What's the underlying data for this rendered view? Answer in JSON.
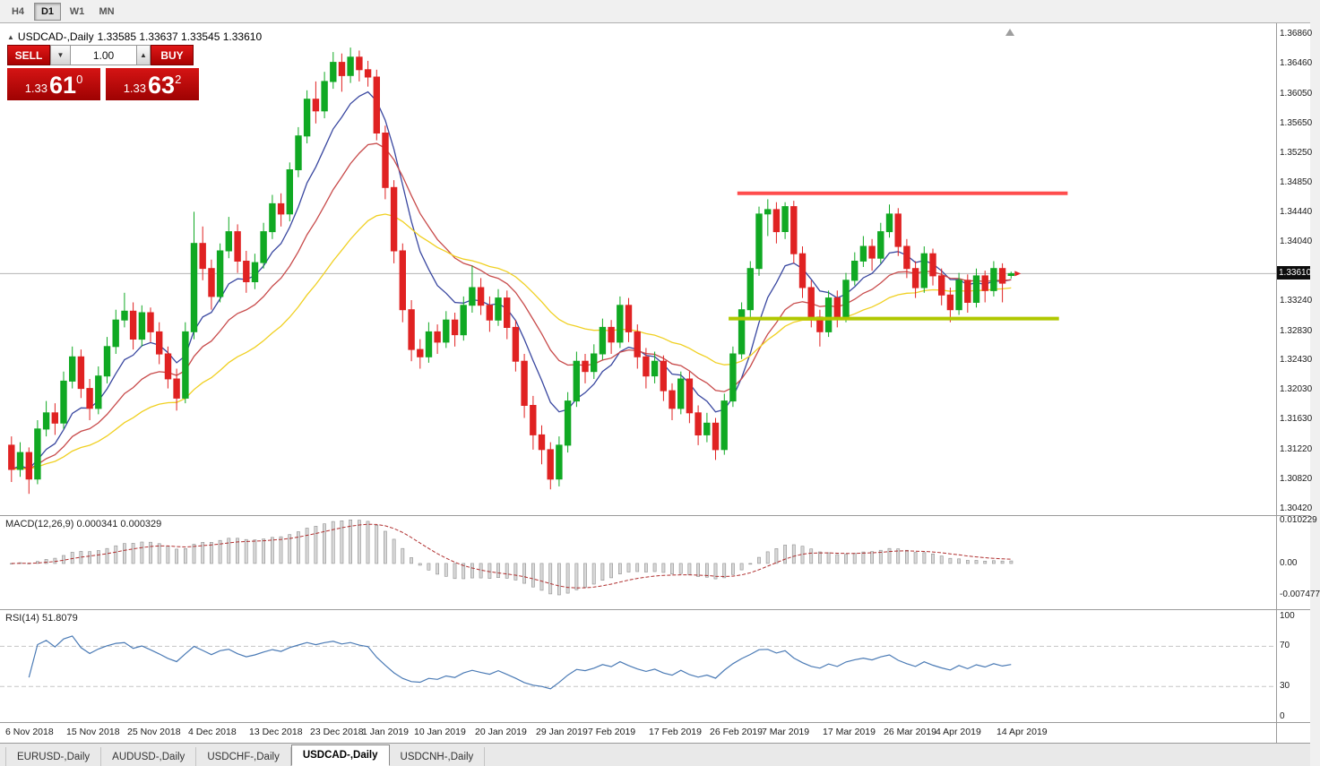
{
  "toolbar": {
    "timeframes": [
      {
        "label": "H4",
        "active": false
      },
      {
        "label": "D1",
        "active": true
      },
      {
        "label": "W1",
        "active": false
      },
      {
        "label": "MN",
        "active": false
      }
    ]
  },
  "chart_header": {
    "symbol_icon": "▲",
    "symbol": "USDCAD-,Daily",
    "ohlc_text": "1.33585 1.33637 1.33545 1.33610"
  },
  "trade_panel": {
    "sell_label": "SELL",
    "buy_label": "BUY",
    "volume": "1.00",
    "volume_down_icon": "▼",
    "volume_up_icon": "▲",
    "sell_price": {
      "prefix": "1.33",
      "main": "61",
      "sup": "0"
    },
    "buy_price": {
      "prefix": "1.33",
      "main": "63",
      "sup": "2"
    }
  },
  "indicators": {
    "macd_header": "MACD(12,26,9) 0.000341 0.000329",
    "rsi_header": "RSI(14) 51.8079"
  },
  "tabs": [
    {
      "label": "EURUSD-,Daily",
      "active": false
    },
    {
      "label": "AUDUSD-,Daily",
      "active": false
    },
    {
      "label": "USDCHF-,Daily",
      "active": false
    },
    {
      "label": "USDCAD-,Daily",
      "active": true
    },
    {
      "label": "USDCNH-,Daily",
      "active": false
    }
  ],
  "colors": {
    "up": "#10a923",
    "down": "#e02222",
    "ma_fast": "#3947a0",
    "ma_mid": "#c84b4b",
    "ma_slow": "#f0d022",
    "resistance": "#ff4d4d",
    "support": "#b0c800",
    "macd_hist": "#d8d8d8",
    "macd_hist_border": "#8f8f8f",
    "macd_signal": "#b03030",
    "rsi": "#4a7ab5",
    "price_line": "#b5b5b5",
    "tag_bg": "#0d0d0d"
  },
  "chart_data": {
    "type": "candlestick",
    "symbol": "USDCAD",
    "timeframe": "Daily",
    "last_ohlc": [
      1.33585,
      1.33637,
      1.33545,
      1.3361
    ],
    "y_axis": {
      "range": [
        1.3033,
        1.3701
      ],
      "ticks": [
        "1.36860",
        "1.36460",
        "1.36050",
        "1.35650",
        "1.35250",
        "1.34850",
        "1.34440",
        "1.34040",
        "1.33240",
        "1.32830",
        "1.32430",
        "1.32030",
        "1.31630",
        "1.31220",
        "1.30820",
        "1.30420"
      ],
      "current": 1.3361,
      "current_label": "1.33610"
    },
    "x_axis": {
      "labels": [
        {
          "i": 0,
          "t": "6 Nov 2018"
        },
        {
          "i": 7,
          "t": "15 Nov 2018"
        },
        {
          "i": 14,
          "t": "25 Nov 2018"
        },
        {
          "i": 21,
          "t": "4 Dec 2018"
        },
        {
          "i": 28,
          "t": "13 Dec 2018"
        },
        {
          "i": 35,
          "t": "23 Dec 2018"
        },
        {
          "i": 41,
          "t": "1 Jan 2019"
        },
        {
          "i": 47,
          "t": "10 Jan 2019"
        },
        {
          "i": 54,
          "t": "20 Jan 2019"
        },
        {
          "i": 61,
          "t": "29 Jan 2019"
        },
        {
          "i": 67,
          "t": "7 Feb 2019"
        },
        {
          "i": 74,
          "t": "17 Feb 2019"
        },
        {
          "i": 81,
          "t": "26 Feb 2019"
        },
        {
          "i": 87,
          "t": "7 Mar 2019"
        },
        {
          "i": 94,
          "t": "17 Mar 2019"
        },
        {
          "i": 101,
          "t": "26 Mar 2019"
        },
        {
          "i": 107,
          "t": "4 Apr 2019"
        },
        {
          "i": 114,
          "t": "14 Apr 2019"
        }
      ]
    },
    "candles": [
      [
        1.3128,
        1.314,
        1.3078,
        1.3095
      ],
      [
        1.3095,
        1.3132,
        1.3085,
        1.3118
      ],
      [
        1.3118,
        1.3125,
        1.3062,
        1.3082
      ],
      [
        1.3082,
        1.3162,
        1.3075,
        1.315
      ],
      [
        1.315,
        1.3188,
        1.314,
        1.3172
      ],
      [
        1.3172,
        1.3185,
        1.3142,
        1.3158
      ],
      [
        1.3158,
        1.3228,
        1.315,
        1.3215
      ],
      [
        1.3215,
        1.3262,
        1.3205,
        1.3248
      ],
      [
        1.3248,
        1.3258,
        1.3192,
        1.3205
      ],
      [
        1.3205,
        1.3218,
        1.3162,
        1.3178
      ],
      [
        1.3178,
        1.3235,
        1.317,
        1.3222
      ],
      [
        1.3222,
        1.3275,
        1.3212,
        1.3262
      ],
      [
        1.3262,
        1.3312,
        1.3252,
        1.3298
      ],
      [
        1.3298,
        1.3335,
        1.3288,
        1.331
      ],
      [
        1.331,
        1.3322,
        1.3258,
        1.3272
      ],
      [
        1.3272,
        1.3318,
        1.3262,
        1.3308
      ],
      [
        1.3308,
        1.3315,
        1.3268,
        1.3282
      ],
      [
        1.3282,
        1.3295,
        1.3238,
        1.3252
      ],
      [
        1.3252,
        1.3262,
        1.3205,
        1.3218
      ],
      [
        1.3218,
        1.3232,
        1.3175,
        1.3192
      ],
      [
        1.3192,
        1.3295,
        1.3185,
        1.3282
      ],
      [
        1.3282,
        1.3445,
        1.3272,
        1.3402
      ],
      [
        1.3402,
        1.3425,
        1.3352,
        1.3368
      ],
      [
        1.3368,
        1.338,
        1.3312,
        1.333
      ],
      [
        1.333,
        1.3402,
        1.3322,
        1.3392
      ],
      [
        1.3392,
        1.3438,
        1.3382,
        1.3418
      ],
      [
        1.3418,
        1.3428,
        1.3362,
        1.3378
      ],
      [
        1.3378,
        1.3392,
        1.3335,
        1.335
      ],
      [
        1.335,
        1.3388,
        1.334,
        1.3376
      ],
      [
        1.3376,
        1.343,
        1.3368,
        1.3418
      ],
      [
        1.3418,
        1.3468,
        1.3408,
        1.3456
      ],
      [
        1.3456,
        1.347,
        1.3425,
        1.3442
      ],
      [
        1.3442,
        1.3512,
        1.3432,
        1.3502
      ],
      [
        1.3502,
        1.356,
        1.3492,
        1.3548
      ],
      [
        1.3548,
        1.361,
        1.3538,
        1.3598
      ],
      [
        1.3598,
        1.3622,
        1.3565,
        1.3582
      ],
      [
        1.3582,
        1.3635,
        1.3572,
        1.3622
      ],
      [
        1.3622,
        1.3662,
        1.3612,
        1.3648
      ],
      [
        1.3648,
        1.366,
        1.3608,
        1.363
      ],
      [
        1.363,
        1.3668,
        1.362,
        1.3655
      ],
      [
        1.3655,
        1.3664,
        1.3622,
        1.3638
      ],
      [
        1.3638,
        1.365,
        1.3615,
        1.3628
      ],
      [
        1.3628,
        1.3638,
        1.3542,
        1.3552
      ],
      [
        1.3552,
        1.3562,
        1.3462,
        1.3478
      ],
      [
        1.3478,
        1.3488,
        1.3375,
        1.3392
      ],
      [
        1.3392,
        1.3402,
        1.3295,
        1.3312
      ],
      [
        1.3312,
        1.3325,
        1.3242,
        1.3258
      ],
      [
        1.3258,
        1.3272,
        1.3232,
        1.3248
      ],
      [
        1.3248,
        1.3295,
        1.324,
        1.3282
      ],
      [
        1.3282,
        1.3292,
        1.3252,
        1.3268
      ],
      [
        1.3268,
        1.331,
        1.326,
        1.3298
      ],
      [
        1.3298,
        1.3308,
        1.3262,
        1.3278
      ],
      [
        1.3278,
        1.333,
        1.327,
        1.3318
      ],
      [
        1.3318,
        1.3372,
        1.3308,
        1.3342
      ],
      [
        1.3342,
        1.3355,
        1.3305,
        1.3318
      ],
      [
        1.3318,
        1.333,
        1.3282,
        1.3298
      ],
      [
        1.3298,
        1.334,
        1.329,
        1.3328
      ],
      [
        1.3328,
        1.3338,
        1.3272,
        1.3288
      ],
      [
        1.3288,
        1.3298,
        1.3228,
        1.3242
      ],
      [
        1.3242,
        1.3252,
        1.3165,
        1.3182
      ],
      [
        1.3182,
        1.3195,
        1.3122,
        1.3142
      ],
      [
        1.3142,
        1.3155,
        1.3102,
        1.3122
      ],
      [
        1.3122,
        1.3132,
        1.3068,
        1.3082
      ],
      [
        1.3082,
        1.314,
        1.3072,
        1.3128
      ],
      [
        1.3128,
        1.32,
        1.3118,
        1.3188
      ],
      [
        1.3188,
        1.3255,
        1.318,
        1.3242
      ],
      [
        1.3242,
        1.3252,
        1.3212,
        1.3228
      ],
      [
        1.3228,
        1.3265,
        1.3218,
        1.3252
      ],
      [
        1.3252,
        1.33,
        1.3244,
        1.3288
      ],
      [
        1.3288,
        1.3298,
        1.3252,
        1.3268
      ],
      [
        1.3268,
        1.333,
        1.326,
        1.3318
      ],
      [
        1.3318,
        1.3328,
        1.3268,
        1.3282
      ],
      [
        1.3282,
        1.3292,
        1.3232,
        1.3248
      ],
      [
        1.3248,
        1.326,
        1.3205,
        1.3222
      ],
      [
        1.3222,
        1.3255,
        1.3212,
        1.3242
      ],
      [
        1.3242,
        1.325,
        1.3188,
        1.3202
      ],
      [
        1.3202,
        1.3212,
        1.3162,
        1.3178
      ],
      [
        1.3178,
        1.3228,
        1.317,
        1.3218
      ],
      [
        1.3218,
        1.3228,
        1.3158,
        1.3172
      ],
      [
        1.3172,
        1.3182,
        1.3128,
        1.3142
      ],
      [
        1.3142,
        1.3172,
        1.3132,
        1.3158
      ],
      [
        1.3158,
        1.3165,
        1.3108,
        1.3122
      ],
      [
        1.3122,
        1.3198,
        1.3115,
        1.3188
      ],
      [
        1.3188,
        1.3262,
        1.318,
        1.3252
      ],
      [
        1.3252,
        1.3322,
        1.3245,
        1.3312
      ],
      [
        1.3312,
        1.3378,
        1.3302,
        1.3368
      ],
      [
        1.3368,
        1.3452,
        1.3358,
        1.3442
      ],
      [
        1.3442,
        1.3462,
        1.3412,
        1.3448
      ],
      [
        1.3448,
        1.3458,
        1.3402,
        1.3418
      ],
      [
        1.3418,
        1.3458,
        1.3408,
        1.3452
      ],
      [
        1.3452,
        1.346,
        1.3375,
        1.3388
      ],
      [
        1.3388,
        1.3398,
        1.3328,
        1.3342
      ],
      [
        1.3342,
        1.3352,
        1.3288,
        1.3302
      ],
      [
        1.3302,
        1.3312,
        1.3262,
        1.3282
      ],
      [
        1.3282,
        1.3338,
        1.3275,
        1.3328
      ],
      [
        1.3328,
        1.3338,
        1.3288,
        1.3302
      ],
      [
        1.3302,
        1.3362,
        1.3295,
        1.3352
      ],
      [
        1.3352,
        1.339,
        1.3345,
        1.3378
      ],
      [
        1.3378,
        1.3412,
        1.337,
        1.3398
      ],
      [
        1.3398,
        1.3408,
        1.3365,
        1.3382
      ],
      [
        1.3382,
        1.343,
        1.3375,
        1.3418
      ],
      [
        1.3418,
        1.3455,
        1.341,
        1.3442
      ],
      [
        1.3442,
        1.345,
        1.3385,
        1.3398
      ],
      [
        1.3398,
        1.3408,
        1.3355,
        1.3368
      ],
      [
        1.3368,
        1.3378,
        1.3328,
        1.3342
      ],
      [
        1.3342,
        1.3398,
        1.3335,
        1.3388
      ],
      [
        1.3388,
        1.3395,
        1.3345,
        1.3358
      ],
      [
        1.3358,
        1.3368,
        1.3318,
        1.3332
      ],
      [
        1.3332,
        1.3342,
        1.3295,
        1.3312
      ],
      [
        1.3312,
        1.3362,
        1.3305,
        1.3352
      ],
      [
        1.3352,
        1.336,
        1.3308,
        1.3322
      ],
      [
        1.3322,
        1.3368,
        1.3315,
        1.3358
      ],
      [
        1.3358,
        1.3365,
        1.3322,
        1.3338
      ],
      [
        1.3338,
        1.3378,
        1.333,
        1.3368
      ],
      [
        1.3368,
        1.3375,
        1.3322,
        1.3348
      ],
      [
        1.33585,
        1.33637,
        1.33545,
        1.3361
      ]
    ],
    "overlays": {
      "moving_averages": [
        {
          "name": "fast",
          "period": 8,
          "color": "#3947a0"
        },
        {
          "name": "medium",
          "period": 17,
          "color": "#c84b4b"
        },
        {
          "name": "slow",
          "period": 34,
          "color": "#f0d022"
        }
      ],
      "resistance": {
        "price": 1.347,
        "from": 84,
        "to": 122
      },
      "support": {
        "price": 1.33,
        "from": 83,
        "to": 121
      }
    },
    "macd": {
      "periods": [
        12,
        26,
        9
      ],
      "current_values": [
        0.000341,
        0.000329
      ],
      "range": [
        -0.0108,
        0.0112
      ],
      "ticks": [
        "0.010229",
        "0.00",
        "-0.007477"
      ]
    },
    "rsi": {
      "period": 14,
      "value": 51.8079,
      "range": [
        -5.5,
        106
      ],
      "levels": [
        70,
        30
      ],
      "ticks": [
        "100",
        "70",
        "30",
        "0"
      ]
    }
  }
}
